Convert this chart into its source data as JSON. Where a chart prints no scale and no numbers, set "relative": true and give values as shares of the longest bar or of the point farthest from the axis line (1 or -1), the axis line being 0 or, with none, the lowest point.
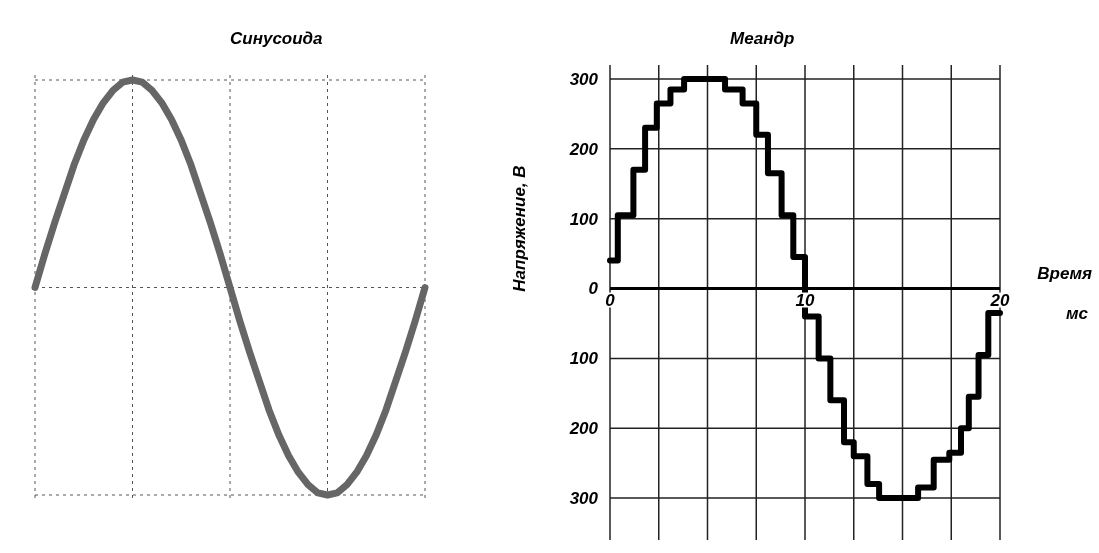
{
  "chart_data": [
    {
      "type": "line",
      "title": "Синусоида",
      "relative": true,
      "grid": true,
      "color": "#666666",
      "categories": [
        null,
        null,
        null,
        null,
        null,
        null,
        null,
        null,
        null,
        null,
        null,
        null,
        null,
        null,
        null,
        null,
        null,
        null,
        null,
        null,
        null,
        null,
        null,
        null,
        null,
        null,
        null,
        null,
        null,
        null,
        null,
        null,
        null,
        null,
        null,
        null,
        null,
        null,
        null,
        null,
        null
      ],
      "values": [
        0,
        0.16,
        0.31,
        0.45,
        0.59,
        0.71,
        0.81,
        0.89,
        0.95,
        0.99,
        1,
        0.99,
        0.95,
        0.89,
        0.81,
        0.71,
        0.59,
        0.45,
        0.31,
        0.16,
        0,
        -0.16,
        -0.31,
        -0.45,
        -0.59,
        -0.71,
        -0.81,
        -0.89,
        -0.95,
        -0.99,
        -1,
        -0.99,
        -0.95,
        -0.89,
        -0.81,
        -0.71,
        -0.59,
        -0.45,
        -0.31,
        -0.16,
        0
      ]
    },
    {
      "type": "step",
      "title": "Меандр",
      "xlabel": "Время",
      "ylabel": "Напряжение, В",
      "annotations": [
        "мс"
      ],
      "grid": true,
      "color": "#000000",
      "x": [
        0,
        0.4,
        1.2,
        1.8,
        2.4,
        3.1,
        3.8,
        5.9,
        6.8,
        7.5,
        8.1,
        8.8,
        9.4,
        10,
        10.7,
        11.3,
        12,
        12.5,
        13.2,
        13.8,
        14.3,
        15.8,
        16.6,
        17.4,
        18,
        18.4,
        18.9,
        19.4,
        20
      ],
      "values": [
        40,
        105,
        170,
        230,
        265,
        285,
        300,
        285,
        265,
        220,
        165,
        105,
        45,
        -40,
        -100,
        -160,
        -220,
        -240,
        -280,
        -300,
        -300,
        -285,
        -245,
        -235,
        -200,
        -155,
        -95,
        -35,
        -35
      ],
      "xlim": [
        0,
        20
      ],
      "ylim": [
        -360,
        320
      ],
      "xticks": [
        0,
        {
          "value": 2.5,
          "label": null
        },
        {
          "value": 5,
          "label": null
        },
        {
          "value": 7.5,
          "label": null
        },
        10,
        {
          "value": 12.5,
          "label": null
        },
        {
          "value": 15,
          "label": null
        },
        {
          "value": 17.5,
          "label": null
        },
        20
      ],
      "yticks": [
        {
          "value": -300,
          "label": "300"
        },
        {
          "value": -200,
          "label": "200"
        },
        {
          "value": -100,
          "label": "100"
        },
        0,
        100,
        200,
        300
      ]
    }
  ]
}
